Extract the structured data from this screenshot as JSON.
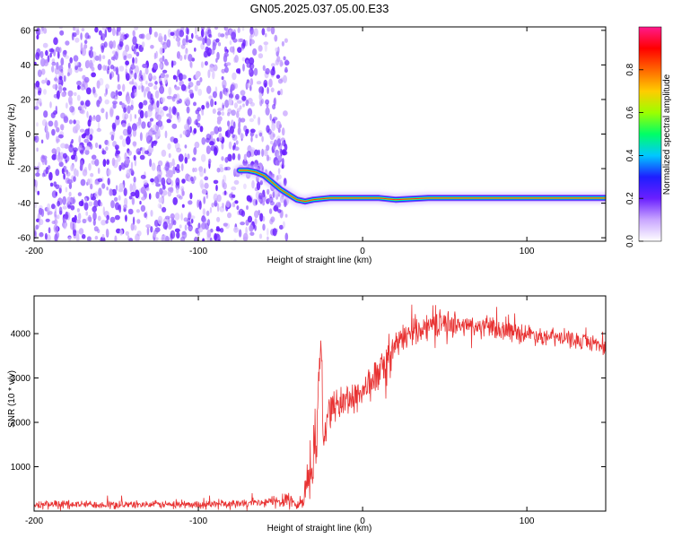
{
  "title": "GN05.2025.037.05.00.E33",
  "colors": {
    "snr_line": "#e83232",
    "noise_purple": "#6a1fff",
    "noise_light": "#c9a6ff",
    "frame": "#000000"
  },
  "chart_data": [
    {
      "type": "heatmap",
      "xlabel": "Height of straight line (km)",
      "ylabel": "Frequency (Hz)",
      "xlim": [
        -200,
        148
      ],
      "ylim": [
        -62,
        62
      ],
      "xticks": [
        -200,
        -100,
        0,
        100
      ],
      "yticks": [
        -60,
        -40,
        -20,
        0,
        20,
        40,
        60
      ],
      "noise_region_x": [
        -200,
        -46
      ],
      "signal_track": {
        "x": [
          -75,
          -70,
          -65,
          -60,
          -55,
          -50,
          -45,
          -40,
          -35,
          -30,
          -20,
          -10,
          0,
          10,
          20,
          40,
          60,
          80,
          100,
          120,
          148
        ],
        "y": [
          -21,
          -21,
          -22,
          -24,
          -28,
          -32,
          -35,
          -38,
          -39,
          -38,
          -37,
          -37,
          -37,
          -37,
          -38,
          -37,
          -37,
          -37,
          -37,
          -37,
          -37
        ]
      },
      "colorbar": {
        "label": "Normalized spectral amplitude",
        "range": [
          0.0,
          1.0
        ],
        "ticks": [
          "0.0",
          "0.2",
          "0.4",
          "0.6",
          "0.8"
        ],
        "tick_values": [
          0.0,
          0.2,
          0.4,
          0.6,
          0.8
        ],
        "colormap": [
          "#ffffff",
          "#c9a6ff",
          "#6a1fff",
          "#1e1eff",
          "#00c8ff",
          "#00ff66",
          "#9cff00",
          "#ffcc00",
          "#ff6600",
          "#ff0000",
          "#ff1a8c"
        ]
      },
      "grid": false,
      "legend": "none"
    },
    {
      "type": "line",
      "xlabel": "Height of straight line (km)",
      "ylabel": "SNR (10 * v/v)",
      "xlim": [
        -200,
        148
      ],
      "ylim": [
        0,
        4850
      ],
      "xticks": [
        -200,
        -100,
        0,
        100
      ],
      "yticks": [
        1000,
        2000,
        3000,
        4000
      ],
      "series": [
        {
          "x": [
            -200,
            -150,
            -100,
            -60,
            -50,
            -45,
            -40,
            -36,
            -34,
            -30,
            -28,
            -26,
            -25,
            -24,
            -22,
            -20,
            -15,
            -10,
            -5,
            0,
            5,
            10,
            15,
            20,
            25,
            30,
            35,
            40,
            50,
            60,
            70,
            80,
            90,
            100,
            110,
            120,
            130,
            140,
            148
          ],
          "y": [
            150,
            150,
            150,
            180,
            250,
            300,
            100,
            300,
            700,
            900,
            1800,
            3400,
            3800,
            1500,
            2100,
            2300,
            2400,
            2500,
            2600,
            2700,
            2900,
            3100,
            3400,
            3700,
            3900,
            4050,
            4150,
            4200,
            4250,
            4200,
            4150,
            4100,
            4050,
            4000,
            3950,
            3900,
            3850,
            3800,
            3700
          ],
          "noise_amp": [
            90,
            90,
            90,
            110,
            200,
            250,
            120,
            300,
            400,
            500,
            600,
            500,
            400,
            500,
            450,
            400,
            400,
            400,
            400,
            420,
            420,
            420,
            400,
            350,
            330,
            320,
            320,
            300,
            300,
            280,
            260,
            250,
            240,
            230,
            220,
            210,
            200,
            200,
            200
          ]
        }
      ],
      "grid": false,
      "legend": "none"
    }
  ]
}
